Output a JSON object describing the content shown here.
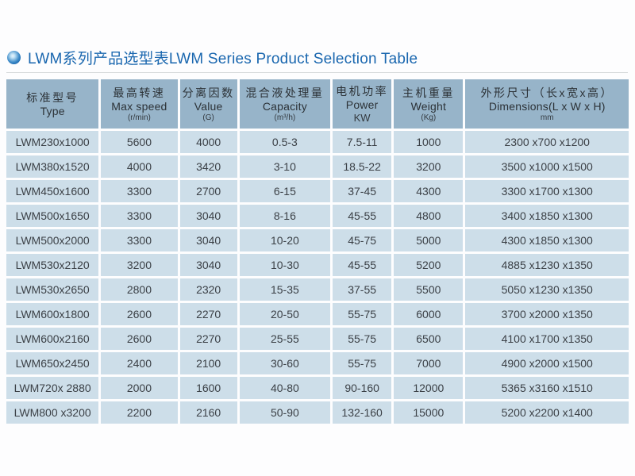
{
  "page": {
    "title": "LWM系列产品选型表LWM Series Product Selection Table"
  },
  "colors": {
    "title_blue": "#1a67af",
    "header_bg": "#97b4c9",
    "row_bg": "#cddee9",
    "cell_text": "#3b4046"
  },
  "table": {
    "columns": [
      {
        "id": "type",
        "cn": "标准型号",
        "en": "Type",
        "unit": ""
      },
      {
        "id": "max-speed",
        "cn": "最高转速",
        "en": "Max speed",
        "unit": "(r/min)"
      },
      {
        "id": "value-g",
        "cn": "分离因数",
        "en": "Value",
        "unit": "(G)"
      },
      {
        "id": "capacity",
        "cn": "混合液处理量",
        "en": "Capacity",
        "unit": "(m³/h)"
      },
      {
        "id": "power",
        "cn": "电机功率",
        "en": "Power",
        "unit": "KW"
      },
      {
        "id": "weight",
        "cn": "主机重量",
        "en": "Weight",
        "unit": "(Kg)"
      },
      {
        "id": "dimensions",
        "cn": "外形尺寸（长x宽x高）",
        "en": "Dimensions(L x W x H)",
        "unit": "mm"
      }
    ],
    "rows": [
      [
        "LWM230x1000",
        "5600",
        "4000",
        "0.5-3",
        "7.5-11",
        "1000",
        "2300 x700 x1200"
      ],
      [
        "LWM380x1520",
        "4000",
        "3420",
        "3-10",
        "18.5-22",
        "3200",
        "3500 x1000 x1500"
      ],
      [
        "LWM450x1600",
        "3300",
        "2700",
        "6-15",
        "37-45",
        "4300",
        "3300 x1700 x1300"
      ],
      [
        "LWM500x1650",
        "3300",
        "3040",
        "8-16",
        "45-55",
        "4800",
        "3400 x1850 x1300"
      ],
      [
        "LWM500x2000",
        "3300",
        "3040",
        "10-20",
        "45-75",
        "5000",
        "4300 x1850 x1300"
      ],
      [
        "LWM530x2120",
        "3200",
        "3040",
        "10-30",
        "45-55",
        "5200",
        "4885 x1230 x1350"
      ],
      [
        "LWM530x2650",
        "2800",
        "2320",
        "15-35",
        "37-55",
        "5500",
        "5050 x1230 x1350"
      ],
      [
        "LWM600x1800",
        "2600",
        "2270",
        "20-50",
        "55-75",
        "6000",
        "3700 x2000 x1350"
      ],
      [
        "LWM600x2160",
        "2600",
        "2270",
        "25-55",
        "55-75",
        "6500",
        "4100 x1700 x1350"
      ],
      [
        "LWM650x2450",
        "2400",
        "2100",
        "30-60",
        "55-75",
        "7000",
        "4900 x2000 x1500"
      ],
      [
        "LWM720x 2880",
        "2000",
        "1600",
        "40-80",
        "90-160",
        "12000",
        "5365 x3160 x1510"
      ],
      [
        "LWM800 x3200",
        "2200",
        "2160",
        "50-90",
        "132-160",
        "15000",
        "5200 x2200 x1400"
      ]
    ]
  }
}
